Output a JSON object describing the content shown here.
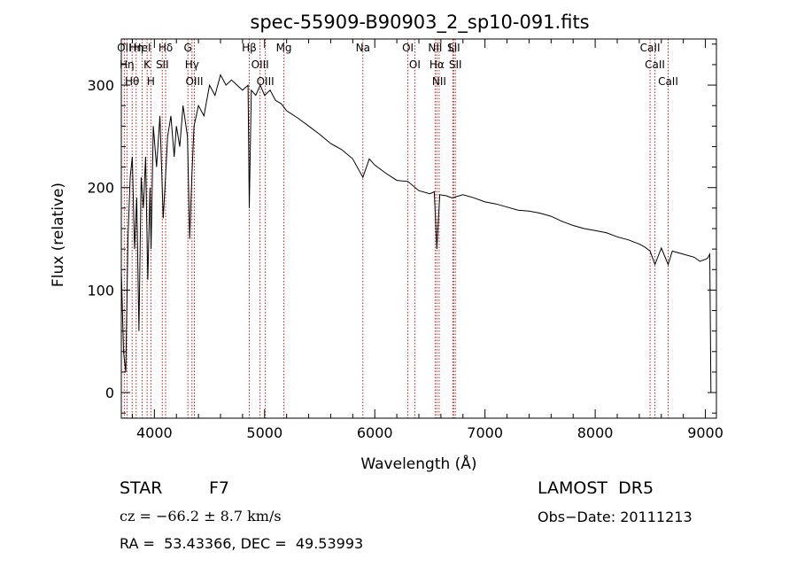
{
  "chart_data": {
    "type": "line",
    "title": "spec-55909-B90903_2_sp10-091.fits",
    "xlabel": "Wavelength (Å)",
    "ylabel": "Flux (relative)",
    "xlim": [
      3700,
      9100
    ],
    "ylim": [
      -25,
      345
    ],
    "xticks": [
      4000,
      5000,
      6000,
      7000,
      8000,
      9000
    ],
    "yticks": [
      0,
      100,
      200,
      300
    ],
    "grid": false,
    "line_color": "#000000",
    "marker_color": "#b22222",
    "series": [
      {
        "x": [
          3700,
          3720,
          3740,
          3760,
          3780,
          3800,
          3820,
          3840,
          3860,
          3880,
          3900,
          3920,
          3940,
          3960,
          3970,
          3990,
          4020,
          4050,
          4080,
          4101,
          4120,
          4150,
          4180,
          4200,
          4230,
          4260,
          4300,
          4320,
          4340,
          4360,
          4400,
          4450,
          4500,
          4550,
          4600,
          4650,
          4700,
          4750,
          4800,
          4850,
          4861,
          4880,
          4920,
          4960,
          5000,
          5050,
          5100,
          5150,
          5200,
          5300,
          5400,
          5500,
          5600,
          5700,
          5800,
          5892,
          5950,
          6000,
          6100,
          6200,
          6300,
          6400,
          6500,
          6540,
          6563,
          6590,
          6650,
          6700,
          6800,
          6900,
          7000,
          7100,
          7200,
          7300,
          7400,
          7500,
          7600,
          7700,
          7800,
          7900,
          8000,
          8100,
          8200,
          8300,
          8400,
          8450,
          8498,
          8542,
          8600,
          8662,
          8700,
          8800,
          8900,
          8950,
          9000,
          9020,
          9040,
          9050
        ],
        "y": [
          120,
          40,
          20,
          150,
          210,
          230,
          140,
          190,
          60,
          210,
          180,
          230,
          110,
          200,
          140,
          260,
          220,
          270,
          170,
          210,
          250,
          270,
          230,
          260,
          240,
          280,
          250,
          150,
          210,
          260,
          280,
          270,
          300,
          290,
          310,
          300,
          305,
          300,
          295,
          300,
          180,
          295,
          290,
          300,
          290,
          295,
          285,
          282,
          275,
          268,
          260,
          252,
          243,
          237,
          228,
          210,
          228,
          222,
          214,
          207,
          206,
          197,
          194,
          196,
          140,
          193,
          192,
          190,
          193,
          190,
          186,
          184,
          181,
          178,
          177,
          175,
          172,
          167,
          163,
          160,
          158,
          156,
          152,
          149,
          145,
          142,
          138,
          125,
          141,
          125,
          138,
          135,
          132,
          128,
          130,
          131,
          135,
          0
        ]
      }
    ],
    "lines": [
      {
        "x": 3727,
        "label": "OII"
      },
      {
        "x": 3751,
        "label": "Hη"
      },
      {
        "x": 3798,
        "label": "Hθ"
      },
      {
        "x": 3835,
        "label": "Hη"
      },
      {
        "x": 3889,
        "label": "HeI"
      },
      {
        "x": 3934,
        "label": "K"
      },
      {
        "x": 3968,
        "label": "H"
      },
      {
        "x": 4072,
        "label": "SII"
      },
      {
        "x": 4102,
        "label": "Hδ"
      },
      {
        "x": 4304,
        "label": "G"
      },
      {
        "x": 4341,
        "label": "Hγ"
      },
      {
        "x": 4363,
        "label": "OIII"
      },
      {
        "x": 4861,
        "label": "Hβ"
      },
      {
        "x": 4959,
        "label": "OIII"
      },
      {
        "x": 5007,
        "label": "OIII"
      },
      {
        "x": 5175,
        "label": "Mg"
      },
      {
        "x": 5892,
        "label": "Na"
      },
      {
        "x": 6300,
        "label": "OI"
      },
      {
        "x": 6363,
        "label": "OI"
      },
      {
        "x": 6548,
        "label": "NII"
      },
      {
        "x": 6563,
        "label": "Hα"
      },
      {
        "x": 6584,
        "label": "NII"
      },
      {
        "x": 6708,
        "label": "Li"
      },
      {
        "x": 6716,
        "label": "SII"
      },
      {
        "x": 6731,
        "label": "SII"
      },
      {
        "x": 8498,
        "label": "CaII"
      },
      {
        "x": 8542,
        "label": "CaII"
      },
      {
        "x": 8662,
        "label": "CaII"
      }
    ]
  },
  "info": {
    "class_label": "STAR",
    "subclass": "F7",
    "cz": "cz = −66.2 ± 8.7 km/s",
    "radec": "RA =  53.43366, DEC =  49.53993",
    "survey": "LAMOST  DR5",
    "obs_date": "Obs−Date: 20111213"
  }
}
